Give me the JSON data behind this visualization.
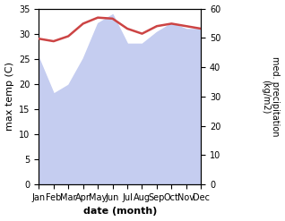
{
  "months": [
    "Jan",
    "Feb",
    "Mar",
    "Apr",
    "May",
    "Jun",
    "Jul",
    "Aug",
    "Sep",
    "Oct",
    "Nov",
    "Dec"
  ],
  "max_temp": [
    29.0,
    28.5,
    29.5,
    32.0,
    33.2,
    33.0,
    31.0,
    30.0,
    31.5,
    32.0,
    31.5,
    31.0
  ],
  "precipitation": [
    43.0,
    31.0,
    34.0,
    43.0,
    55.0,
    58.0,
    48.0,
    48.0,
    52.0,
    55.0,
    53.0,
    53.0
  ],
  "temp_color": "#cc4444",
  "precip_fill_color": "#c5cdf0",
  "ylabel_left": "max temp (C)",
  "ylabel_right": "med. precipitation\n(kg/m2)",
  "xlabel": "date (month)",
  "ylim_left": [
    0,
    35
  ],
  "ylim_right": [
    0,
    60
  ],
  "yticks_left": [
    0,
    5,
    10,
    15,
    20,
    25,
    30,
    35
  ],
  "yticks_right": [
    0,
    10,
    20,
    30,
    40,
    50,
    60
  ],
  "bg_color": "#ffffff"
}
